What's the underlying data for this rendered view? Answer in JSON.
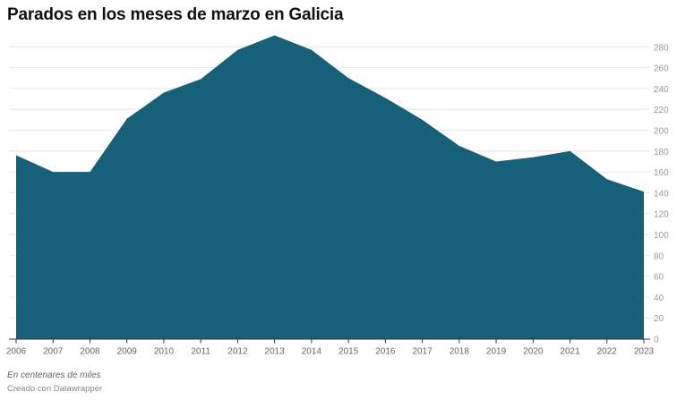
{
  "chart_data": {
    "type": "area",
    "title": "Parados en los meses de marzo en Galicia",
    "x": [
      "2006",
      "2007",
      "2008",
      "2009",
      "2010",
      "2011",
      "2012",
      "2013",
      "2014",
      "2015",
      "2016",
      "2017",
      "2018",
      "2019",
      "2020",
      "2021",
      "2022",
      "2023"
    ],
    "values": [
      176,
      160,
      160,
      211,
      236,
      249,
      277,
      291,
      277,
      250,
      231,
      210,
      185,
      170,
      174,
      180,
      153,
      141
    ],
    "ylim": [
      0,
      290
    ],
    "yticks": [
      0,
      20,
      40,
      60,
      80,
      100,
      120,
      140,
      160,
      180,
      200,
      220,
      240,
      260,
      280
    ],
    "yaxis_position": "right",
    "grid": true,
    "color": "#17607a",
    "note": "En centenares de miles",
    "credit": "Creado con Datawrapper"
  }
}
